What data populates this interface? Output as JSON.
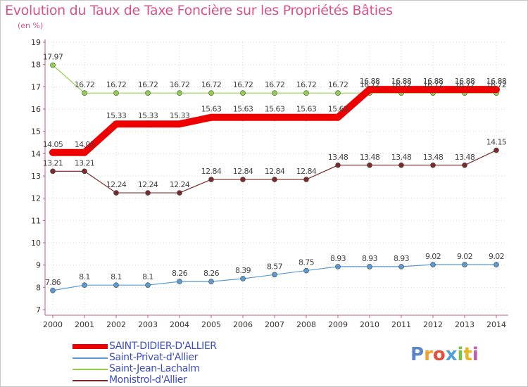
{
  "header": {
    "title": "Evolution du Taux de Taxe Foncière sur les Propriétés Bâties",
    "unit": "(en %)"
  },
  "logo": {
    "text": "Proxiti",
    "colors": [
      "#5b86c9",
      "#f0a12a",
      "#e44f3a",
      "#4fa1d8",
      "#7cc142",
      "#e8b622",
      "#c25bb0"
    ]
  },
  "chart_data": {
    "type": "line",
    "title": "Evolution du Taux de Taxe Foncière sur les Propriétés Bâties",
    "ylabel": "(en %)",
    "xlabel": "",
    "ylim": [
      7,
      19
    ],
    "yticks": [
      "7",
      "8",
      "9",
      "10",
      "11",
      "12",
      "13",
      "14",
      "15",
      "16",
      "17",
      "18",
      "19"
    ],
    "categories": [
      "2000",
      "2001",
      "2002",
      "2003",
      "2004",
      "2005",
      "2006",
      "2007",
      "2008",
      "2009",
      "2010",
      "2011",
      "2012",
      "2013",
      "2014"
    ],
    "grid": true,
    "series": [
      {
        "name": "Saint-Privat-d'Allier",
        "color": "#5a9bd3",
        "values": [
          7.86,
          8.1,
          8.1,
          8.1,
          8.26,
          8.26,
          8.39,
          8.57,
          8.75,
          8.93,
          8.93,
          8.93,
          9.02,
          9.02,
          9.02
        ],
        "labels": [
          "7.86",
          "8.1",
          "8.1",
          "8.1",
          "8.26",
          "8.26",
          "8.39",
          "8.57",
          "8.75",
          "8.93",
          "8.93",
          "8.93",
          "9.02",
          "9.02",
          "9.02"
        ]
      },
      {
        "name": "Monistrol-d'Allier",
        "color": "#7a2a2a",
        "values": [
          13.21,
          13.21,
          12.24,
          12.24,
          12.24,
          12.84,
          12.84,
          12.84,
          12.84,
          13.48,
          13.48,
          13.48,
          13.48,
          13.48,
          14.15
        ],
        "labels": [
          "13.21",
          "13.21",
          "12.24",
          "12.24",
          "12.24",
          "12.84",
          "12.84",
          "12.84",
          "12.84",
          "13.48",
          "13.48",
          "13.48",
          "13.48",
          "13.48",
          "14.15"
        ]
      },
      {
        "name": "Saint-Jean-Lachalm",
        "color": "#8fd14f",
        "values": [
          17.97,
          16.72,
          16.72,
          16.72,
          16.72,
          16.72,
          16.72,
          16.72,
          16.72,
          16.72,
          16.72,
          16.72,
          16.72,
          16.72,
          16.72
        ],
        "labels": [
          "17.97",
          "16.72",
          "16.72",
          "16.72",
          "16.72",
          "16.72",
          "16.72",
          "16.72",
          "16.72",
          "16.72",
          "16.72",
          "16.72",
          "16.72",
          "16.72",
          "16.72"
        ]
      },
      {
        "name": "SAINT-DIDIER-D'ALLIER",
        "color": "#ee0000",
        "values": [
          14.05,
          14.05,
          15.33,
          15.33,
          15.33,
          15.63,
          15.63,
          15.63,
          15.63,
          15.63,
          16.88,
          16.88,
          16.88,
          16.88,
          16.88
        ],
        "labels": [
          "14.05",
          "14.05",
          "15.33",
          "15.33",
          "15.33",
          "15.63",
          "15.63",
          "15.63",
          "15.63",
          "15.63",
          "16.88",
          "16.88",
          "16.88",
          "16.88",
          "16.88"
        ]
      }
    ],
    "legend": {
      "position": "bottom-left",
      "entries": [
        "SAINT-DIDIER-D'ALLIER",
        "Saint-Privat-d'Allier",
        "Saint-Jean-Lachalm",
        "Monistrol-d'Allier"
      ]
    }
  }
}
